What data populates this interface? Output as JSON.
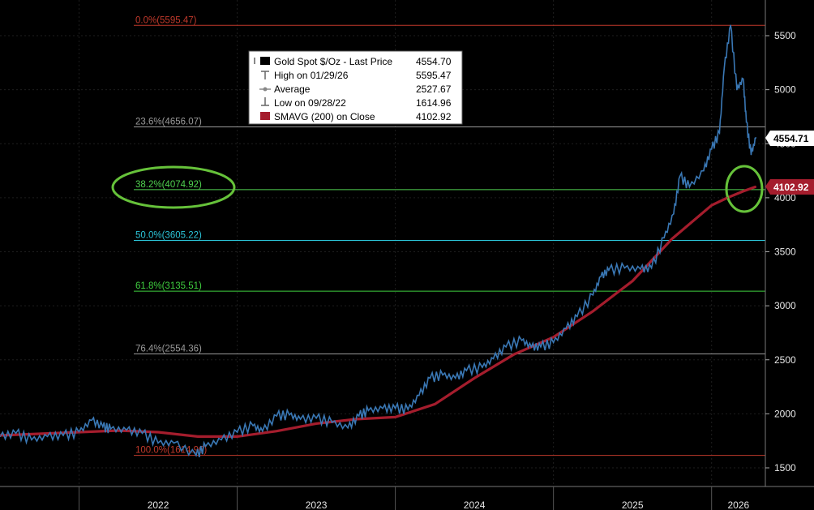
{
  "legend": {
    "rows": [
      {
        "icon": "black-square-icon",
        "label": "Gold Spot $/Oz - Last Price",
        "value": "4554.70"
      },
      {
        "icon": "high-marker-icon",
        "label": "High on 01/29/26",
        "value": "5595.47"
      },
      {
        "icon": "average-marker-icon",
        "label": "Average",
        "value": "2527.67"
      },
      {
        "icon": "low-marker-icon",
        "label": "Low on 09/28/22",
        "value": "1614.96"
      },
      {
        "icon": "red-square-icon",
        "label": "SMAVG (200)  on Close",
        "value": "4102.92"
      }
    ]
  },
  "price_tags": {
    "last": "4554.71",
    "sma": "4102.92"
  },
  "colors": {
    "background": "#000000",
    "price_line": "#3a78b5",
    "sma_line": "#a51d2d",
    "fib_0": "#c0392b",
    "fib_236": "#9a9a9a",
    "fib_382": "#4fd14f",
    "fib_50": "#2bc4d8",
    "fib_618": "#3fcf3f",
    "fib_764": "#9a9a9a",
    "fib_100": "#c0392b",
    "highlight_circle": "#66c23a"
  },
  "chart_data": {
    "type": "line",
    "title": "",
    "xlabel": "",
    "ylabel": "",
    "ylim": [
      1330,
      5900
    ],
    "xlim": [
      2021.5,
      2026.34
    ],
    "x_ticks": [
      "2022",
      "2023",
      "2024",
      "2025",
      "2026"
    ],
    "y_ticks": [
      1500,
      2000,
      2500,
      3000,
      3500,
      4000,
      4500,
      5000,
      5500
    ],
    "fib_levels": [
      {
        "label": "0.0%(5595.47)",
        "value": 5595.47
      },
      {
        "label": "23.6%(4656.07)",
        "value": 4656.07
      },
      {
        "label": "38.2%(4074.92)",
        "value": 4074.92
      },
      {
        "label": "50.0%(3605.22)",
        "value": 3605.22
      },
      {
        "label": "61.8%(3135.51)",
        "value": 3135.51
      },
      {
        "label": "76.4%(2554.36)",
        "value": 2554.36
      },
      {
        "label": "100.0%(1614.96)",
        "value": 1614.96
      }
    ],
    "series": [
      {
        "name": "Gold Spot $/Oz - Last Price",
        "x": [
          2021.5,
          2021.6,
          2021.7,
          2021.8,
          2021.9,
          2022.0,
          2022.08,
          2022.15,
          2022.2,
          2022.3,
          2022.4,
          2022.5,
          2022.6,
          2022.74,
          2022.8,
          2022.9,
          2023.0,
          2023.1,
          2023.16,
          2023.25,
          2023.33,
          2023.4,
          2023.5,
          2023.6,
          2023.7,
          2023.77,
          2023.83,
          2023.92,
          2024.0,
          2024.08,
          2024.15,
          2024.22,
          2024.3,
          2024.38,
          2024.45,
          2024.55,
          2024.62,
          2024.7,
          2024.8,
          2024.86,
          2024.92,
          2025.0,
          2025.08,
          2025.15,
          2025.25,
          2025.3,
          2025.35,
          2025.45,
          2025.55,
          2025.62,
          2025.7,
          2025.76,
          2025.8,
          2025.86,
          2025.95,
          2026.0,
          2026.05,
          2026.08,
          2026.12,
          2026.16,
          2026.2,
          2026.22,
          2026.25,
          2026.28
        ],
        "values": [
          1790,
          1820,
          1760,
          1790,
          1800,
          1830,
          1940,
          1880,
          1860,
          1850,
          1820,
          1730,
          1730,
          1614.96,
          1700,
          1760,
          1830,
          1890,
          1840,
          1980,
          1990,
          1950,
          1960,
          1920,
          1870,
          1980,
          2030,
          2050,
          2050,
          2040,
          2170,
          2330,
          2360,
          2330,
          2400,
          2430,
          2510,
          2620,
          2680,
          2620,
          2620,
          2660,
          2790,
          2900,
          3100,
          3270,
          3330,
          3350,
          3340,
          3350,
          3630,
          3850,
          4200,
          4100,
          4250,
          4450,
          4600,
          5200,
          5595.47,
          5000,
          5100,
          4700,
          4400,
          4554.7
        ]
      },
      {
        "name": "SMAVG (200)  on Close",
        "x": [
          2021.5,
          2022.0,
          2022.25,
          2022.5,
          2022.75,
          2023.0,
          2023.25,
          2023.5,
          2023.75,
          2024.0,
          2024.25,
          2024.5,
          2024.75,
          2025.0,
          2025.25,
          2025.5,
          2025.75,
          2026.0,
          2026.1,
          2026.2,
          2026.28
        ],
        "values": [
          1800,
          1830,
          1845,
          1830,
          1790,
          1790,
          1840,
          1910,
          1950,
          1970,
          2090,
          2330,
          2550,
          2710,
          2950,
          3230,
          3620,
          3930,
          4000,
          4060,
          4102.92
        ]
      }
    ]
  }
}
